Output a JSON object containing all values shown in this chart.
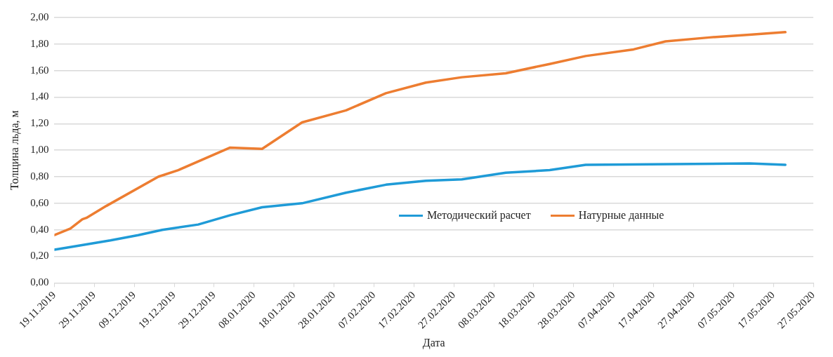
{
  "chart_data": {
    "type": "line",
    "xlabel": "Дата",
    "ylabel": "Толщина льда, м",
    "x": [
      "2019-11-19",
      "2019-11-23",
      "2019-11-26",
      "2019-11-27",
      "2019-12-02",
      "2019-12-03",
      "2019-12-10",
      "2019-12-15",
      "2019-12-16",
      "2019-12-20",
      "2019-12-25",
      "2020-01-02",
      "2020-01-10",
      "2020-01-20",
      "2020-01-31",
      "2020-02-10",
      "2020-02-20",
      "2020-02-29",
      "2020-03-11",
      "2020-03-22",
      "2020-03-31",
      "2020-04-12",
      "2020-04-20",
      "2020-05-01",
      "2020-05-11",
      "2020-05-20"
    ],
    "series": [
      {
        "name": "Методический расчет",
        "color": "#1f9bd7",
        "values": [
          0.25,
          0.27,
          null,
          null,
          null,
          0.32,
          0.36,
          null,
          0.4,
          null,
          0.44,
          0.51,
          0.57,
          0.6,
          0.68,
          0.74,
          0.77,
          0.78,
          0.83,
          0.85,
          0.89,
          null,
          null,
          null,
          0.9,
          0.89
        ]
      },
      {
        "name": "Натурные данные",
        "color": "#ed7d31",
        "values": [
          0.36,
          0.41,
          0.48,
          0.49,
          0.58,
          null,
          null,
          0.8,
          null,
          0.85,
          null,
          1.02,
          1.01,
          1.21,
          1.3,
          1.43,
          1.51,
          1.55,
          1.58,
          1.65,
          1.71,
          1.76,
          1.82,
          1.85,
          1.87,
          1.89
        ]
      }
    ],
    "xlim": [
      "2019-11-19",
      "2020-05-27"
    ],
    "xticks": [
      {
        "value": "2019-11-19",
        "label": "19.11.2019"
      },
      {
        "value": "2019-11-29",
        "label": "29.11.2019"
      },
      {
        "value": "2019-12-09",
        "label": "09.12.2019"
      },
      {
        "value": "2019-12-19",
        "label": "19.12.2019"
      },
      {
        "value": "2019-12-29",
        "label": "29.12.2019"
      },
      {
        "value": "2020-01-08",
        "label": "08.01.2020"
      },
      {
        "value": "2020-01-18",
        "label": "18.01.2020"
      },
      {
        "value": "2020-01-28",
        "label": "28.01.2020"
      },
      {
        "value": "2020-02-07",
        "label": "07.02.2020"
      },
      {
        "value": "2020-02-17",
        "label": "17.02.2020"
      },
      {
        "value": "2020-02-27",
        "label": "27.02.2020"
      },
      {
        "value": "2020-03-08",
        "label": "08.03.2020"
      },
      {
        "value": "2020-03-18",
        "label": "18.03.2020"
      },
      {
        "value": "2020-03-28",
        "label": "28.03.2020"
      },
      {
        "value": "2020-04-07",
        "label": "07.04.2020"
      },
      {
        "value": "2020-04-17",
        "label": "17.04.2020"
      },
      {
        "value": "2020-04-27",
        "label": "27.04.2020"
      },
      {
        "value": "2020-05-07",
        "label": "07.05.2020"
      },
      {
        "value": "2020-05-17",
        "label": "17.05.2020"
      },
      {
        "value": "2020-05-27",
        "label": "27.05.2020"
      }
    ],
    "ylim": [
      0,
      2
    ],
    "yticks": [
      {
        "value": 0,
        "label": "0,00"
      },
      {
        "value": 0.2,
        "label": "0,20"
      },
      {
        "value": 0.4,
        "label": "0,40"
      },
      {
        "value": 0.6,
        "label": "0,60"
      },
      {
        "value": 0.8,
        "label": "0,80"
      },
      {
        "value": 1,
        "label": "1,00"
      },
      {
        "value": 1.2,
        "label": "1,20"
      },
      {
        "value": 1.4,
        "label": "1,40"
      },
      {
        "value": 1.6,
        "label": "1,60"
      },
      {
        "value": 1.8,
        "label": "1,80"
      },
      {
        "value": 2,
        "label": "2,00"
      }
    ],
    "grid": "y",
    "legend": "center right",
    "marker": "none",
    "line_style": "solid"
  }
}
